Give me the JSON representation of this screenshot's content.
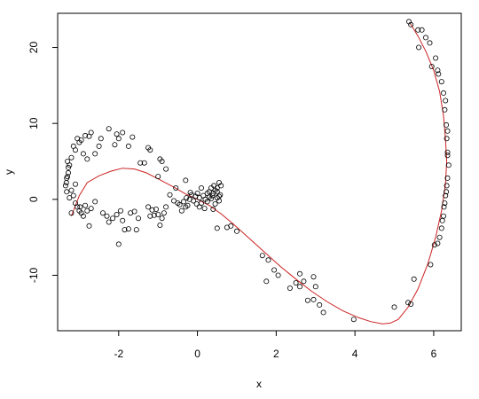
{
  "chart_data": {
    "type": "scatter",
    "title": "",
    "xlabel": "x",
    "ylabel": "y",
    "xlim": [
      -3.55,
      6.7
    ],
    "ylim": [
      -17.3,
      24.5
    ],
    "xticks": [
      -2,
      0,
      2,
      4,
      6
    ],
    "yticks": [
      -10,
      0,
      10,
      20
    ],
    "xtick_labels": [
      "-2",
      "0",
      "2",
      "4",
      "6"
    ],
    "ytick_labels": [
      "-10",
      "0",
      "10",
      "20"
    ],
    "grid": false,
    "legend": "none",
    "point_color": "#000000",
    "curve_color": "#cc2222",
    "points": [
      [
        5.37,
        23.4
      ],
      [
        5.42,
        23.0
      ],
      [
        5.6,
        22.3
      ],
      [
        5.7,
        22.3
      ],
      [
        5.62,
        20.0
      ],
      [
        5.8,
        21.3
      ],
      [
        5.9,
        20.6
      ],
      [
        5.95,
        17.5
      ],
      [
        6.05,
        18.6
      ],
      [
        6.1,
        17.0
      ],
      [
        6.12,
        16.5
      ],
      [
        6.2,
        15.5
      ],
      [
        6.25,
        14.0
      ],
      [
        6.3,
        13.0
      ],
      [
        6.28,
        11.8
      ],
      [
        6.32,
        9.8
      ],
      [
        6.35,
        9.0
      ],
      [
        6.33,
        8.0
      ],
      [
        6.35,
        6.2
      ],
      [
        6.35,
        5.8
      ],
      [
        6.38,
        4.5
      ],
      [
        6.35,
        2.8
      ],
      [
        6.33,
        1.8
      ],
      [
        6.32,
        1.0
      ],
      [
        6.3,
        0.5
      ],
      [
        6.28,
        -0.5
      ],
      [
        6.26,
        -1.0
      ],
      [
        6.25,
        -2.2
      ],
      [
        6.22,
        -2.8
      ],
      [
        6.2,
        -3.8
      ],
      [
        6.15,
        -5.0
      ],
      [
        6.1,
        -5.8
      ],
      [
        6.02,
        -6.0
      ],
      [
        5.92,
        -8.6
      ],
      [
        5.5,
        -10.5
      ],
      [
        5.35,
        -13.6
      ],
      [
        5.42,
        -13.8
      ],
      [
        5.0,
        -14.2
      ],
      [
        3.97,
        -15.8
      ],
      [
        3.2,
        -14.9
      ],
      [
        3.1,
        -13.9
      ],
      [
        2.95,
        -13.2
      ],
      [
        2.8,
        -13.3
      ],
      [
        3.0,
        -11.5
      ],
      [
        2.95,
        -10.2
      ],
      [
        2.6,
        -9.8
      ],
      [
        2.5,
        -11.0
      ],
      [
        2.6,
        -11.5
      ],
      [
        2.7,
        -10.8
      ],
      [
        2.35,
        -11.7
      ],
      [
        2.05,
        -10.0
      ],
      [
        1.95,
        -9.3
      ],
      [
        1.8,
        -8.0
      ],
      [
        1.75,
        -10.8
      ],
      [
        1.65,
        -7.4
      ],
      [
        1.0,
        -4.2
      ],
      [
        0.85,
        -3.5
      ],
      [
        0.75,
        -3.7
      ],
      [
        0.5,
        -3.8
      ],
      [
        0.55,
        2.2
      ],
      [
        0.6,
        1.8
      ],
      [
        0.5,
        1.5
      ],
      [
        0.45,
        1.2
      ],
      [
        0.42,
        1.8
      ],
      [
        0.4,
        0.8
      ],
      [
        0.38,
        0.5
      ],
      [
        0.3,
        0.3
      ],
      [
        0.25,
        -0.3
      ],
      [
        0.2,
        0.0
      ],
      [
        0.15,
        0.5
      ],
      [
        0.1,
        -0.5
      ],
      [
        0.05,
        0.2
      ],
      [
        0.0,
        0.8
      ],
      [
        -0.05,
        0.4
      ],
      [
        -0.1,
        -0.2
      ],
      [
        -0.15,
        0.6
      ],
      [
        -0.2,
        0.0
      ],
      [
        -0.25,
        -0.8
      ],
      [
        -0.3,
        -1.0
      ],
      [
        -0.35,
        -0.3
      ],
      [
        -0.4,
        -1.5
      ],
      [
        -0.45,
        -0.7
      ],
      [
        -0.5,
        -0.5
      ],
      [
        -0.6,
        -0.2
      ],
      [
        0.3,
        1.0
      ],
      [
        0.35,
        1.5
      ],
      [
        0.5,
        0.2
      ],
      [
        0.55,
        -0.2
      ],
      [
        0.58,
        0.6
      ],
      [
        0.1,
        1.5
      ],
      [
        0.05,
        -1.0
      ],
      [
        0.45,
        -0.6
      ],
      [
        0.25,
        0.8
      ],
      [
        0.18,
        -1.2
      ],
      [
        -0.02,
        -0.6
      ],
      [
        0.4,
        -1.3
      ],
      [
        0.35,
        0.1
      ],
      [
        -0.18,
        0.9
      ],
      [
        -0.28,
        0.2
      ],
      [
        0.5,
        1.0
      ],
      [
        0.55,
        0.4
      ],
      [
        -0.3,
        2.5
      ],
      [
        -0.55,
        1.5
      ],
      [
        -0.7,
        0.6
      ],
      [
        -0.8,
        -1.0
      ],
      [
        -0.85,
        -1.8
      ],
      [
        -0.9,
        -2.5
      ],
      [
        -0.95,
        -3.4
      ],
      [
        -1.0,
        -2.0
      ],
      [
        -1.05,
        -1.3
      ],
      [
        -1.1,
        -2.1
      ],
      [
        -1.15,
        -1.4
      ],
      [
        -1.2,
        -2.2
      ],
      [
        -1.25,
        -1.0
      ],
      [
        -0.8,
        4.0
      ],
      [
        -0.9,
        5.0
      ],
      [
        -1.0,
        3.0
      ],
      [
        -0.95,
        5.3
      ],
      [
        -1.2,
        6.5
      ],
      [
        -1.25,
        6.8
      ],
      [
        -1.35,
        4.8
      ],
      [
        -1.45,
        4.8
      ],
      [
        -1.5,
        -2.5
      ],
      [
        -1.6,
        -1.6
      ],
      [
        -1.55,
        -4.0
      ],
      [
        -1.7,
        -1.8
      ],
      [
        -1.75,
        -3.9
      ],
      [
        -1.85,
        -4.0
      ],
      [
        -1.9,
        -2.8
      ],
      [
        -1.95,
        -1.5
      ],
      [
        -2.0,
        -5.9
      ],
      [
        -2.05,
        -2.0
      ],
      [
        -2.15,
        -2.5
      ],
      [
        -2.25,
        -3.0
      ],
      [
        -2.3,
        -2.2
      ],
      [
        -2.4,
        -1.8
      ],
      [
        -1.65,
        8.2
      ],
      [
        -1.75,
        7.0
      ],
      [
        -1.9,
        8.8
      ],
      [
        -2.0,
        8.0
      ],
      [
        -2.05,
        8.6
      ],
      [
        -2.1,
        7.2
      ],
      [
        -2.25,
        9.3
      ],
      [
        -2.45,
        8.0
      ],
      [
        -2.5,
        7.0
      ],
      [
        -2.6,
        6.0
      ],
      [
        -2.7,
        8.8
      ],
      [
        -2.75,
        8.3
      ],
      [
        -2.8,
        5.3
      ],
      [
        -2.85,
        8.4
      ],
      [
        -2.9,
        6.0
      ],
      [
        -2.95,
        7.8
      ],
      [
        -3.0,
        7.5
      ],
      [
        -3.05,
        8.0
      ],
      [
        -3.1,
        6.5
      ],
      [
        -3.15,
        7.0
      ],
      [
        -3.2,
        5.5
      ],
      [
        -3.25,
        4.5
      ],
      [
        -3.28,
        3.5
      ],
      [
        -3.3,
        3.0
      ],
      [
        -3.32,
        2.8
      ],
      [
        -3.33,
        2.2
      ],
      [
        -3.35,
        1.8
      ],
      [
        -3.3,
        5.0
      ],
      [
        -3.28,
        4.2
      ],
      [
        -3.2,
        1.2
      ],
      [
        -3.15,
        0.5
      ],
      [
        -3.1,
        -0.5
      ],
      [
        -3.05,
        -1.0
      ],
      [
        -3.0,
        -1.5
      ],
      [
        -2.95,
        -1.8
      ],
      [
        -2.9,
        -2.2
      ],
      [
        -2.85,
        -0.8
      ],
      [
        -2.8,
        -1.5
      ],
      [
        -2.75,
        -3.5
      ],
      [
        -2.7,
        -1.2
      ],
      [
        -2.6,
        -0.3
      ],
      [
        -3.1,
        2.0
      ],
      [
        -3.2,
        -1.8
      ],
      [
        -2.98,
        -1.0
      ],
      [
        -3.32,
        1.0
      ],
      [
        -3.25,
        0.2
      ]
    ],
    "curve": [
      [
        -3.2,
        -2.2
      ],
      [
        -3.0,
        0.5
      ],
      [
        -2.8,
        2.2
      ],
      [
        -2.5,
        3.1
      ],
      [
        -2.2,
        3.7
      ],
      [
        -1.9,
        4.1
      ],
      [
        -1.6,
        4.0
      ],
      [
        -1.3,
        3.5
      ],
      [
        -1.0,
        2.7
      ],
      [
        -0.6,
        1.6
      ],
      [
        -0.3,
        0.7
      ],
      [
        0.0,
        0.0
      ],
      [
        0.3,
        -0.8
      ],
      [
        0.6,
        -1.9
      ],
      [
        0.9,
        -3.2
      ],
      [
        1.2,
        -4.6
      ],
      [
        1.5,
        -6.0
      ],
      [
        1.8,
        -7.4
      ],
      [
        2.1,
        -8.8
      ],
      [
        2.5,
        -10.5
      ],
      [
        2.9,
        -12.1
      ],
      [
        3.3,
        -13.5
      ],
      [
        3.7,
        -14.7
      ],
      [
        4.1,
        -15.6
      ],
      [
        4.4,
        -16.1
      ],
      [
        4.7,
        -16.4
      ],
      [
        4.9,
        -16.3
      ],
      [
        5.1,
        -15.8
      ],
      [
        5.35,
        -14.2
      ],
      [
        5.6,
        -11.8
      ],
      [
        5.85,
        -8.5
      ],
      [
        6.05,
        -5.0
      ],
      [
        6.2,
        -1.5
      ],
      [
        6.3,
        2.0
      ],
      [
        6.33,
        5.0
      ],
      [
        6.3,
        8.0
      ],
      [
        6.25,
        11.0
      ],
      [
        6.15,
        14.2
      ],
      [
        6.0,
        17.0
      ],
      [
        5.8,
        19.5
      ],
      [
        5.6,
        21.5
      ],
      [
        5.4,
        23.2
      ]
    ]
  }
}
